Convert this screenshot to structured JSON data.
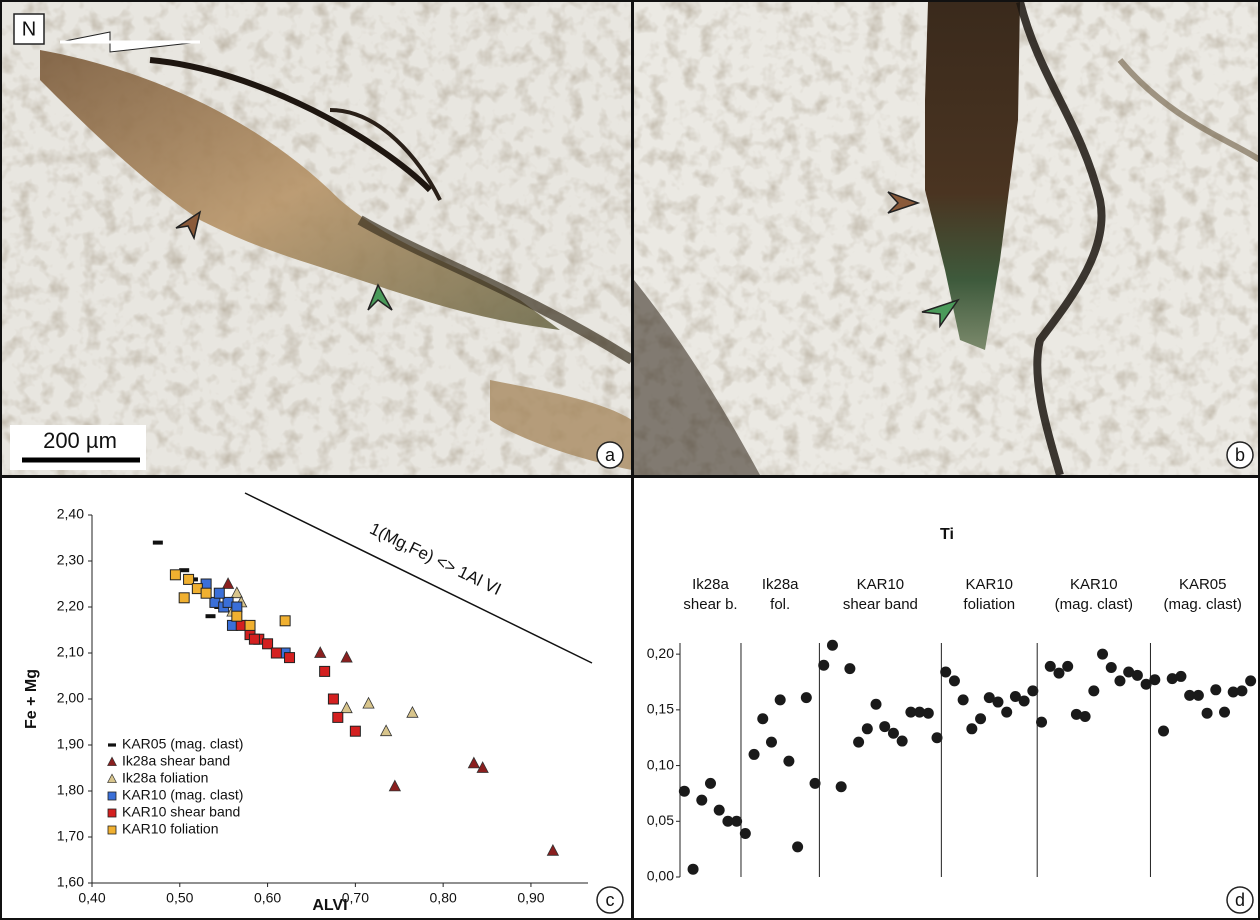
{
  "photos": [
    {
      "panel_label": "a",
      "north_label": "N",
      "scale_bar_label": "200 µm"
    },
    {
      "panel_label": "b"
    }
  ],
  "chart_data": [
    {
      "type": "scatter",
      "panel_label": "c",
      "x_label": "ALVI",
      "y_label": "Fe + Mg",
      "annotation": "1(Mg,Fe) <> 1Al VI",
      "xlim": [
        0.4,
        0.965
      ],
      "xticks": [
        {
          "value": 0.4,
          "label": "0,40"
        },
        {
          "value": 0.5,
          "label": "0,50"
        },
        {
          "value": 0.6,
          "label": "0,60"
        },
        {
          "value": 0.7,
          "label": "0,70"
        },
        {
          "value": 0.8,
          "label": "0,80"
        },
        {
          "value": 0.9,
          "label": "0,90"
        }
      ],
      "ylim": [
        1.6,
        2.4
      ],
      "yticks": [
        {
          "value": 1.6,
          "label": "1,60"
        },
        {
          "value": 1.7,
          "label": "1,70"
        },
        {
          "value": 1.8,
          "label": "1,80"
        },
        {
          "value": 1.9,
          "label": "1,90"
        },
        {
          "value": 2.0,
          "label": "2,00"
        },
        {
          "value": 2.1,
          "label": "2,10"
        },
        {
          "value": 2.2,
          "label": "2,20"
        },
        {
          "value": 2.3,
          "label": "2,30"
        },
        {
          "value": 2.4,
          "label": "2,40"
        }
      ],
      "legend": "lower left",
      "series": [
        {
          "name": "KAR05 (mag. clast)",
          "color": "#111111",
          "marker": "dash",
          "x": [
            0.475,
            0.505,
            0.515,
            0.53,
            0.535,
            0.52,
            0.545,
            0.55
          ],
          "values": [
            2.34,
            2.28,
            2.26,
            2.25,
            2.18,
            2.24,
            2.2,
            2.2
          ]
        },
        {
          "name": "Ik28a shear band",
          "color": "#8a1f1f",
          "marker": "triangle",
          "x": [
            0.555,
            0.66,
            0.69,
            0.745,
            0.835,
            0.845,
            0.925
          ],
          "values": [
            2.25,
            2.1,
            2.09,
            1.81,
            1.86,
            1.85,
            1.67
          ]
        },
        {
          "name": "Ik28a foliation",
          "color": "#d8c58c",
          "marker": "triangle",
          "x": [
            0.565,
            0.57,
            0.56,
            0.565,
            0.69,
            0.715,
            0.735,
            0.765
          ],
          "values": [
            2.23,
            2.21,
            2.19,
            2.17,
            1.98,
            1.99,
            1.93,
            1.97
          ]
        },
        {
          "name": "KAR10 (mag. clast)",
          "color": "#3a6fd8",
          "marker": "square",
          "x": [
            0.53,
            0.54,
            0.55,
            0.555,
            0.56,
            0.565,
            0.62,
            0.545
          ],
          "values": [
            2.25,
            2.21,
            2.2,
            2.21,
            2.16,
            2.2,
            2.1,
            2.23
          ]
        },
        {
          "name": "KAR10 shear band",
          "color": "#d42020",
          "marker": "square",
          "x": [
            0.57,
            0.58,
            0.59,
            0.6,
            0.61,
            0.625,
            0.665,
            0.675,
            0.68,
            0.7,
            0.585
          ],
          "values": [
            2.16,
            2.14,
            2.13,
            2.12,
            2.1,
            2.09,
            2.06,
            2.0,
            1.96,
            1.93,
            2.13
          ]
        },
        {
          "name": "KAR10 foliation",
          "color": "#f0b030",
          "marker": "square",
          "x": [
            0.495,
            0.51,
            0.505,
            0.52,
            0.53,
            0.62,
            0.565,
            0.58
          ],
          "values": [
            2.27,
            2.26,
            2.22,
            2.24,
            2.23,
            2.17,
            2.18,
            2.16
          ]
        }
      ]
    },
    {
      "type": "dot_strip",
      "panel_label": "d",
      "title": "Ti",
      "color": "#1a1a1a",
      "ylim": [
        0,
        0.21
      ],
      "yticks": [
        {
          "value": 0,
          "label": "0,00"
        },
        {
          "value": 0.05,
          "label": "0,05"
        },
        {
          "value": 0.1,
          "label": "0,10"
        },
        {
          "value": 0.15,
          "label": "0,15"
        },
        {
          "value": 0.2,
          "label": "0,20"
        }
      ],
      "groups": [
        {
          "label": [
            "Ik28a",
            "shear b."
          ],
          "values": [
            0.077,
            0.007,
            0.069,
            0.084,
            0.06,
            0.05,
            0.05
          ]
        },
        {
          "label": [
            "Ik28a",
            "fol."
          ],
          "values": [
            0.039,
            0.11,
            0.142,
            0.121,
            0.159,
            0.104,
            0.027,
            0.161,
            0.084
          ]
        },
        {
          "label": [
            "KAR10",
            "shear band"
          ],
          "values": [
            0.19,
            0.208,
            0.081,
            0.187,
            0.121,
            0.133,
            0.155,
            0.135,
            0.129,
            0.122,
            0.148,
            0.148,
            0.147,
            0.125
          ]
        },
        {
          "label": [
            "KAR10",
            "foliation"
          ],
          "values": [
            0.184,
            0.176,
            0.159,
            0.133,
            0.142,
            0.161,
            0.157,
            0.148,
            0.162,
            0.158,
            0.167
          ]
        },
        {
          "label": [
            "KAR10",
            "(mag. clast)"
          ],
          "values": [
            0.139,
            0.189,
            0.183,
            0.189,
            0.146,
            0.144,
            0.167,
            0.2,
            0.188,
            0.176,
            0.184,
            0.181,
            0.173
          ]
        },
        {
          "label": [
            "KAR05",
            "(mag. clast)"
          ],
          "values": [
            0.177,
            0.131,
            0.178,
            0.18,
            0.163,
            0.163,
            0.147,
            0.168,
            0.148,
            0.166,
            0.167,
            0.176
          ]
        }
      ]
    }
  ]
}
